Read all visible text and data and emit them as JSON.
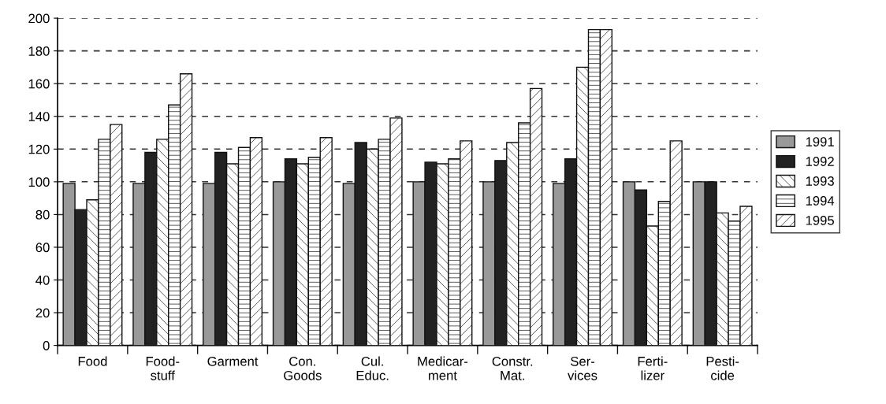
{
  "chart_data": {
    "type": "bar",
    "categories": [
      "Food",
      "Food-\nstuff",
      "Garment",
      "Con.\nGoods",
      "Cul.\nEduc.",
      "Medicar-\nment",
      "Constr.\nMat.",
      "Ser-\nvices",
      "Ferti-\nlizer",
      "Pesti-\ncide"
    ],
    "series": [
      {
        "name": "1991",
        "color": "#999999",
        "values": [
          99,
          99,
          99,
          100,
          99,
          100,
          100,
          99,
          100,
          100
        ]
      },
      {
        "name": "1992",
        "color": "#222222",
        "values": [
          83,
          118,
          118,
          114,
          124,
          112,
          113,
          114,
          95,
          100
        ]
      },
      {
        "name": "1993",
        "color": "#111111",
        "values": [
          89,
          126,
          111,
          111,
          120,
          111,
          124,
          170,
          73,
          81
        ]
      },
      {
        "name": "1994",
        "color": "#111111",
        "values": [
          126,
          147,
          121,
          115,
          126,
          114,
          136,
          193,
          88,
          76
        ]
      },
      {
        "name": "1995",
        "color": "#111111",
        "values": [
          135,
          166,
          127,
          127,
          139,
          125,
          157,
          193,
          125,
          85
        ]
      }
    ],
    "ylim": [
      0,
      200
    ],
    "yticks": [
      0,
      20,
      40,
      60,
      80,
      100,
      120,
      140,
      160,
      180,
      200
    ],
    "grid": "y",
    "legend": "right"
  }
}
